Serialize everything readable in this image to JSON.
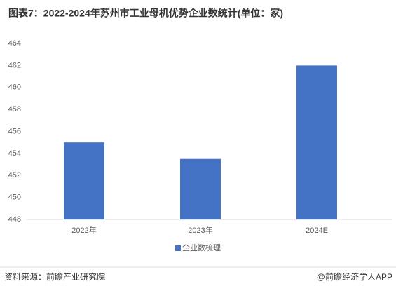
{
  "chart_data": {
    "type": "bar",
    "title": "图表7：2022-2024年苏州市工业母机优势企业数统计(单位：家)",
    "categories": [
      "2022年",
      "2023年",
      "2024E"
    ],
    "series": [
      {
        "name": "企业数梳理",
        "color": "#4472c4",
        "values": [
          455,
          453.5,
          462
        ]
      }
    ],
    "ylim": [
      448,
      464
    ],
    "yticks": [
      448,
      450,
      452,
      454,
      456,
      458,
      460,
      462,
      464
    ],
    "grid": false,
    "legend": "bottom"
  },
  "footer": {
    "source": "资料来源：前瞻产业研究院",
    "brand": "@前瞻经济学人APP"
  }
}
